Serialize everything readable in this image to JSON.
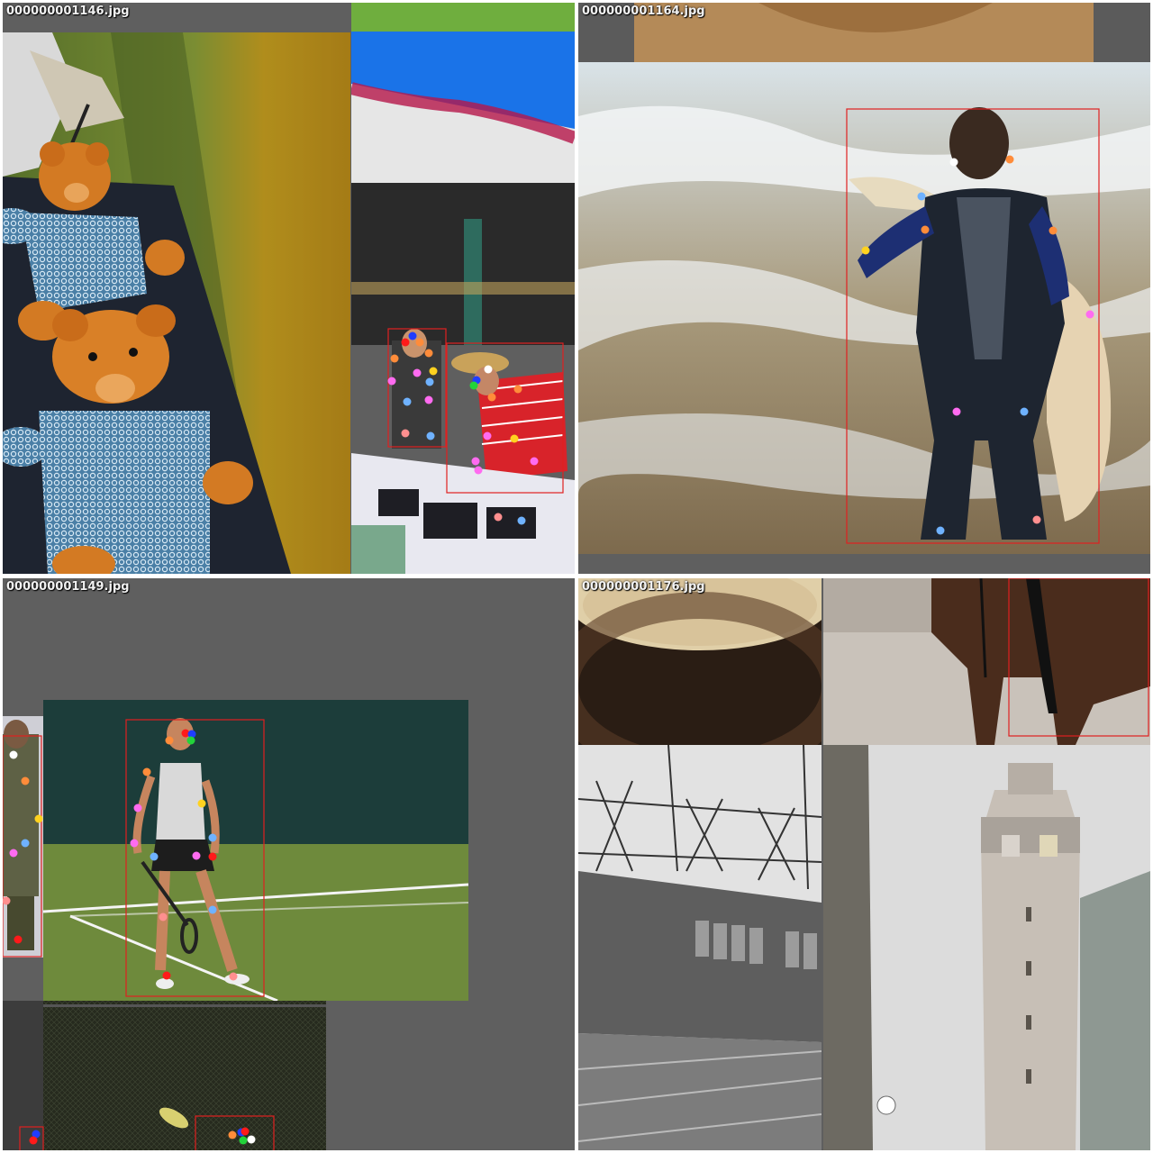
{
  "panels": [
    {
      "filename": "000000001146.jpg"
    },
    {
      "filename": "000000001164.jpg"
    },
    {
      "filename": "000000001149.jpg"
    },
    {
      "filename": "000000001176.jpg"
    }
  ],
  "colors": {
    "bbox": "#e02020",
    "keypoint_palette": [
      "#ffffff",
      "#ff8c3a",
      "#ffd21f",
      "#ff6bf0",
      "#6fb2ff",
      "#ff8f8f",
      "#ff1a1a",
      "#1f3dff",
      "#22d33a"
    ]
  },
  "q1_points": [
    [
      458,
      373,
      "#1f3dff"
    ],
    [
      450,
      380,
      "#ff1a1a"
    ],
    [
      466,
      380,
      "#ff8c3a"
    ],
    [
      438,
      398,
      "#ff8c3a"
    ],
    [
      476,
      392,
      "#ff8c3a"
    ],
    [
      435,
      423,
      "#ff6bf0"
    ],
    [
      463,
      414,
      "#ff6bf0"
    ],
    [
      481,
      412,
      "#ffd21f"
    ],
    [
      477,
      424,
      "#6fb2ff"
    ],
    [
      452,
      446,
      "#6fb2ff"
    ],
    [
      476,
      444,
      "#ff6bf0"
    ],
    [
      450,
      481,
      "#ff8f8f"
    ],
    [
      478,
      484,
      "#6fb2ff"
    ],
    [
      542,
      410,
      "#ffffff"
    ],
    [
      529,
      422,
      "#1f3dff"
    ],
    [
      526,
      428,
      "#22d33a"
    ],
    [
      546,
      441,
      "#ff8c3a"
    ],
    [
      575,
      432,
      "#ff8c3a"
    ],
    [
      541,
      484,
      "#ff6bf0"
    ],
    [
      571,
      487,
      "#ffd21f"
    ],
    [
      528,
      512,
      "#ff6bf0"
    ],
    [
      593,
      512,
      "#ff6bf0"
    ],
    [
      531,
      522,
      "#ff6bf0"
    ],
    [
      553,
      574,
      "#ff8f8f"
    ],
    [
      579,
      578,
      "#6fb2ff"
    ]
  ],
  "q2_points": [
    [
      1059,
      180,
      "#ffffff"
    ],
    [
      1121,
      177,
      "#ff8c3a"
    ],
    [
      1023,
      218,
      "#6fb2ff"
    ],
    [
      1027,
      255,
      "#ff8c3a"
    ],
    [
      1169,
      256,
      "#ff8c3a"
    ],
    [
      961,
      278,
      "#ffd21f"
    ],
    [
      1210,
      349,
      "#ff6bf0"
    ],
    [
      1062,
      457,
      "#ff6bf0"
    ],
    [
      1137,
      457,
      "#6fb2ff"
    ],
    [
      1151,
      577,
      "#ff8f8f"
    ],
    [
      1044,
      589,
      "#6fb2ff"
    ]
  ],
  "q3_points": [
    [
      206,
      814,
      "#ff1a1a"
    ],
    [
      213,
      815,
      "#1f3dff"
    ],
    [
      212,
      822,
      "#22d33a"
    ],
    [
      188,
      822,
      "#ff8c3a"
    ],
    [
      163,
      857,
      "#ff8c3a"
    ],
    [
      224,
      892,
      "#ffd21f"
    ],
    [
      153,
      897,
      "#ff6bf0"
    ],
    [
      149,
      936,
      "#ff6bf0"
    ],
    [
      236,
      930,
      "#6fb2ff"
    ],
    [
      171,
      951,
      "#6fb2ff"
    ],
    [
      218,
      950,
      "#ff6bf0"
    ],
    [
      236,
      951,
      "#ff1a1a"
    ],
    [
      181,
      1018,
      "#ff8f8f"
    ],
    [
      236,
      1010,
      "#6fb2ff"
    ],
    [
      185,
      1083,
      "#ff1a1a"
    ],
    [
      259,
      1084,
      "#ff8f8f"
    ],
    [
      15,
      838,
      "#ffffff"
    ],
    [
      28,
      867,
      "#ff8c3a"
    ],
    [
      43,
      909,
      "#ffd21f"
    ],
    [
      28,
      936,
      "#6fb2ff"
    ],
    [
      15,
      947,
      "#ff6bf0"
    ],
    [
      7,
      1000,
      "#ff8f8f"
    ],
    [
      20,
      1043,
      "#ff1a1a"
    ],
    [
      258,
      1260,
      "#ff8c3a"
    ],
    [
      268,
      1257,
      "#1f3dff"
    ],
    [
      272,
      1256,
      "#ff1a1a"
    ],
    [
      270,
      1266,
      "#22d33a"
    ],
    [
      279,
      1265,
      "#ffffff"
    ],
    [
      40,
      1259,
      "#1f3dff"
    ],
    [
      37,
      1266,
      "#ff1a1a"
    ]
  ]
}
